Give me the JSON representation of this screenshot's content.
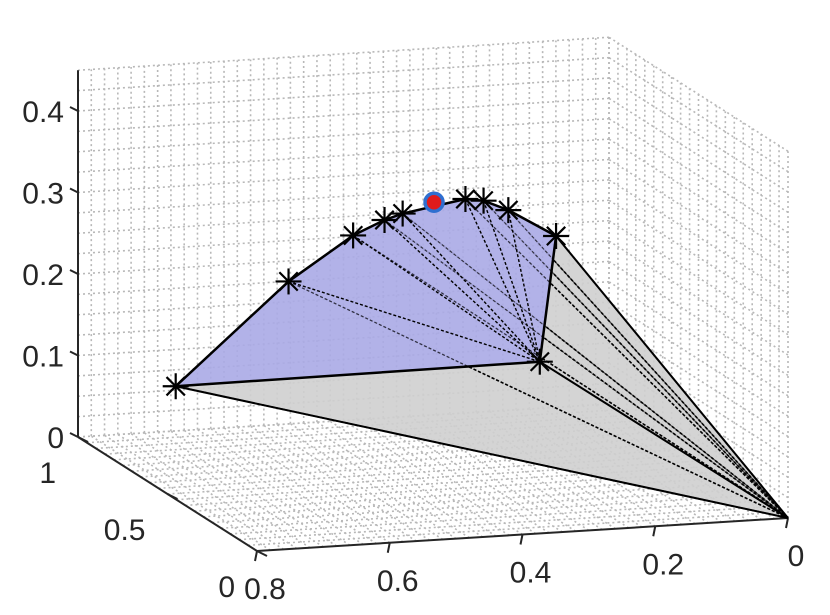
{
  "chart_data": {
    "type": "3d-surface",
    "title": "",
    "xlabel": "",
    "ylabel": "",
    "zlabel": "",
    "grid": true,
    "axes": {
      "x": {
        "ticks": [
          "0",
          "0.2",
          "0.4",
          "0.6",
          "0.8"
        ]
      },
      "y": {
        "ticks": [
          "0",
          "0.5",
          "1"
        ]
      },
      "z": {
        "ticks": [
          "0",
          "0.1",
          "0.2",
          "0.3",
          "0.4"
        ]
      }
    },
    "apex": {
      "x": 0.0,
      "y": 0.0,
      "z": 0.0
    },
    "front_points": [
      {
        "x": 0.82,
        "y": 0.38,
        "z": 0.15
      },
      {
        "x": 0.65,
        "y": 0.38,
        "z": 0.27
      },
      {
        "x": 0.55,
        "y": 0.39,
        "z": 0.32
      },
      {
        "x": 0.5,
        "y": 0.4,
        "z": 0.335
      },
      {
        "x": 0.47,
        "y": 0.41,
        "z": 0.34
      },
      {
        "x": 0.37,
        "y": 0.43,
        "z": 0.35
      },
      {
        "x": 0.34,
        "y": 0.44,
        "z": 0.345
      },
      {
        "x": 0.3,
        "y": 0.45,
        "z": 0.33
      },
      {
        "x": 0.22,
        "y": 0.48,
        "z": 0.29
      },
      {
        "x": 0.32,
        "y": 0.2,
        "z": 0.18
      }
    ],
    "highlight_point": {
      "x": 0.42,
      "y": 0.42,
      "z": 0.35
    },
    "colors": {
      "polygon_fill": "#aaaae6",
      "cone_fill": "#cfcfcf",
      "edge": "#000000",
      "highlight_fill": "#e01b1b",
      "highlight_ring": "#2f6fd0"
    }
  }
}
